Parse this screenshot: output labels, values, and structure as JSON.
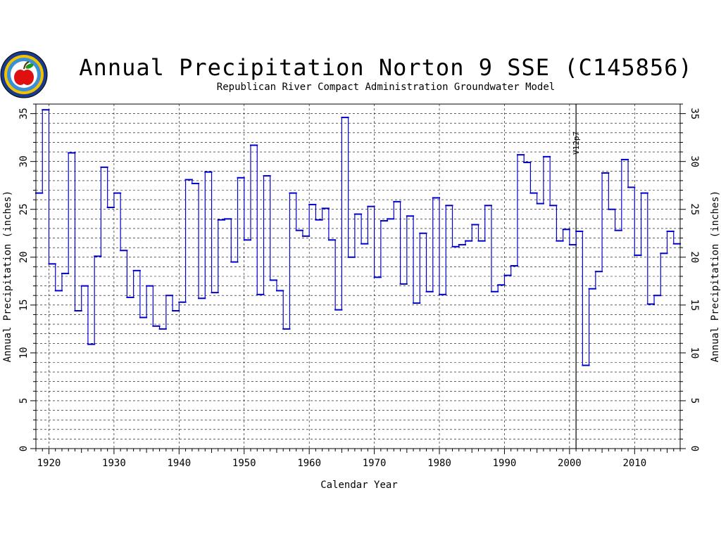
{
  "header": {
    "title": "Annual Precipitation Norton 9 SSE (C145856)",
    "subtitle": "Republican River Compact Administration Groundwater Model"
  },
  "logo": {
    "icon": "apple-seal-icon"
  },
  "colors": {
    "series": "#0000cc",
    "grid": "#000000",
    "annotation": "#000000"
  },
  "chart_data": {
    "type": "line",
    "step": true,
    "xlabel": "Calendar Year",
    "ylabel": "Annual Precipitation (inches)",
    "ylabel_right": "Annual Precipitation (inches)",
    "xlim": [
      1918,
      2017
    ],
    "ylim": [
      0,
      36
    ],
    "x_ticks": [
      1920,
      1930,
      1940,
      1950,
      1960,
      1970,
      1980,
      1990,
      2000,
      2010
    ],
    "y_ticks": [
      0,
      5,
      10,
      15,
      20,
      25,
      30,
      35
    ],
    "grid": true,
    "annotations": [
      {
        "x": 2001,
        "label": "V12p7"
      }
    ],
    "series": [
      {
        "x": [
          1918,
          1919,
          1920,
          1921,
          1922,
          1923,
          1924,
          1925,
          1926,
          1927,
          1928,
          1929,
          1930,
          1931,
          1932,
          1933,
          1934,
          1935,
          1936,
          1937,
          1938,
          1939,
          1940,
          1941,
          1942,
          1943,
          1944,
          1945,
          1946,
          1947,
          1948,
          1949,
          1950,
          1951,
          1952,
          1953,
          1954,
          1955,
          1956,
          1957,
          1958,
          1959,
          1960,
          1961,
          1962,
          1963,
          1964,
          1965,
          1966,
          1967,
          1968,
          1969,
          1970,
          1971,
          1972,
          1973,
          1974,
          1975,
          1976,
          1977,
          1978,
          1979,
          1980,
          1981,
          1982,
          1983,
          1984,
          1985,
          1986,
          1987,
          1988,
          1989,
          1990,
          1991,
          1992,
          1993,
          1994,
          1995,
          1996,
          1997,
          1998,
          1999,
          2000,
          2001,
          2002,
          2003,
          2004,
          2005,
          2006,
          2007,
          2008,
          2009,
          2010,
          2011,
          2012,
          2013,
          2014,
          2015,
          2016
        ],
        "values": [
          26.7,
          35.4,
          19.3,
          16.5,
          18.3,
          30.9,
          14.4,
          17.0,
          10.9,
          20.1,
          29.4,
          25.2,
          26.7,
          20.7,
          15.8,
          18.6,
          13.7,
          17.0,
          12.8,
          12.5,
          16.0,
          14.4,
          15.3,
          28.1,
          27.7,
          15.7,
          28.9,
          16.3,
          23.9,
          24.0,
          19.5,
          28.3,
          21.8,
          31.7,
          16.1,
          28.5,
          17.6,
          16.5,
          12.5,
          26.7,
          22.8,
          22.2,
          25.5,
          23.9,
          25.1,
          21.8,
          14.5,
          34.6,
          20.0,
          24.5,
          21.4,
          25.3,
          17.9,
          23.8,
          24.0,
          25.8,
          17.2,
          24.3,
          15.2,
          22.5,
          16.4,
          26.2,
          16.1,
          25.4,
          21.1,
          21.3,
          21.7,
          23.4,
          21.7,
          25.4,
          16.4,
          17.1,
          18.1,
          19.1,
          30.7,
          29.9,
          26.7,
          25.6,
          30.5,
          25.4,
          21.7,
          22.9,
          21.3,
          22.7,
          8.7,
          16.7,
          18.5,
          28.8,
          25.0,
          22.8,
          30.2,
          27.3,
          20.2,
          26.7,
          15.1,
          16.0,
          20.4,
          22.7,
          21.4
        ]
      }
    ]
  }
}
